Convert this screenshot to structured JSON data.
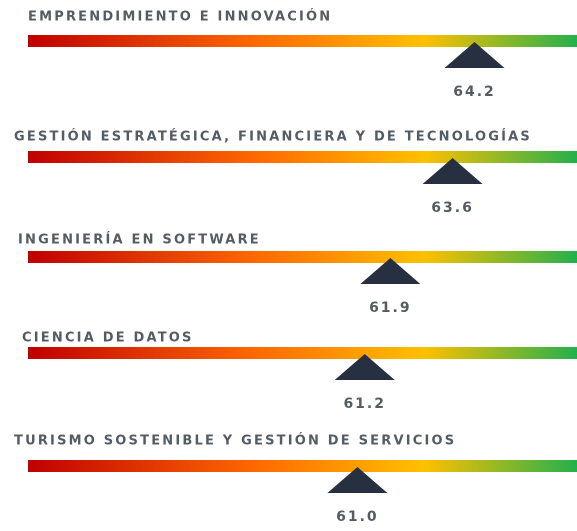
{
  "chart_data": {
    "type": "gauge",
    "categories": [
      "EMPRENDIMIENTO E INNOVACIÓN",
      "GESTIÓN ESTRATÉGICA, FINANCIERA Y DE TECNOLOGÍAS",
      "INGENIERÍA EN SOFTWARE",
      "CIENCIA DE DATOS",
      "TURISMO SOSTENIBLE Y GESTIÓN DE SERVICIOS"
    ],
    "values": [
      64.2,
      63.6,
      61.9,
      61.2,
      61.0
    ],
    "value_labels": [
      "64.2",
      "63.6",
      "61.9",
      "61.2",
      "61.0"
    ],
    "xlim": [
      52,
      67
    ],
    "gradient_colors": [
      "#c00000",
      "#ff6a00",
      "#ffc000",
      "#22b14c"
    ],
    "marker_color": "#263040"
  }
}
